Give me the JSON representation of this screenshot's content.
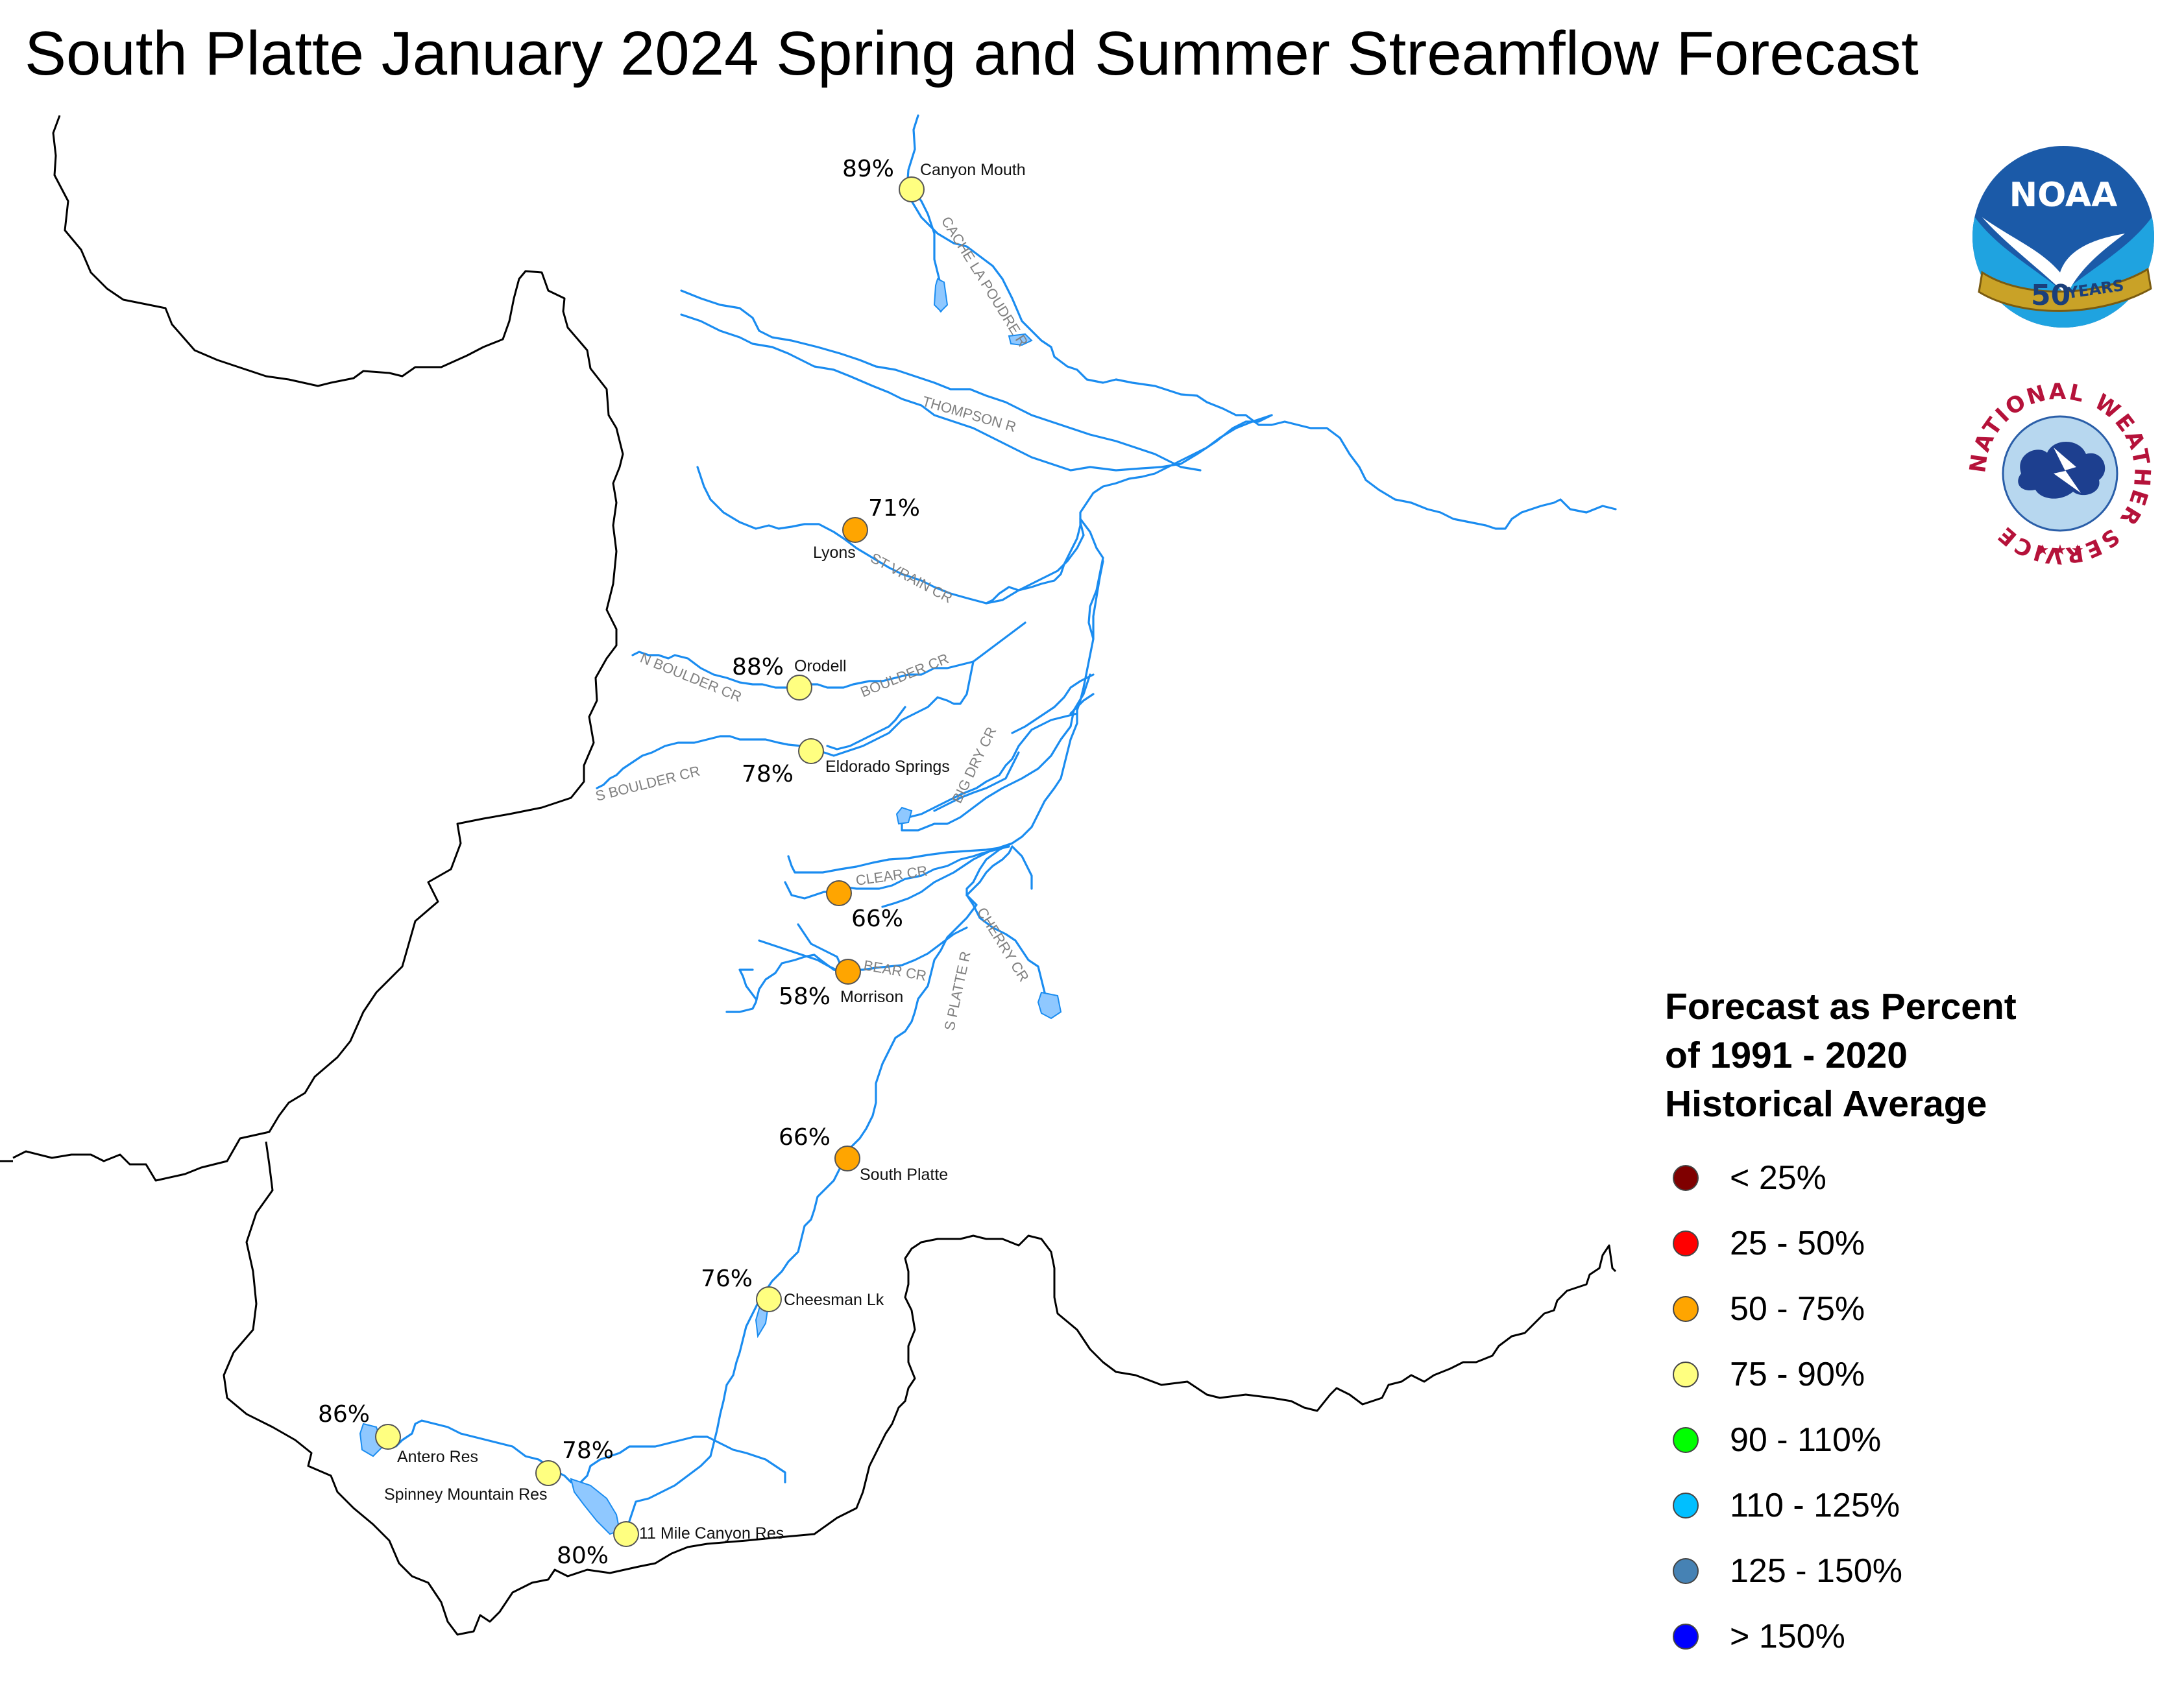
{
  "title": "South Platte January 2024 Spring and Summer Streamflow Forecast",
  "rivers": {
    "cache_la_poudre": "CACHE LA POUDRE R",
    "thompson": "THOMPSON R",
    "st_vrain": "ST VRAIN CR",
    "n_boulder": "N BOULDER CR",
    "boulder": "BOULDER CR",
    "s_boulder": "S BOULDER CR",
    "big_dry": "BIG DRY CR",
    "clear": "CLEAR CR",
    "bear": "BEAR CR",
    "cherry": "CHERRY CR",
    "s_platte": "S PLATTE R"
  },
  "sites": [
    {
      "name": "Canyon Mouth",
      "percent": "89%",
      "category": "75 - 90%"
    },
    {
      "name": "Lyons",
      "percent": "71%",
      "category": "50 - 75%"
    },
    {
      "name": "Orodell",
      "percent": "88%",
      "category": "75 - 90%"
    },
    {
      "name": "Eldorado Springs",
      "percent": "78%",
      "category": "75 - 90%"
    },
    {
      "name": "",
      "percent": "66%",
      "category": "50 - 75%"
    },
    {
      "name": "Morrison",
      "percent": "58%",
      "category": "50 - 75%"
    },
    {
      "name": "South Platte",
      "percent": "66%",
      "category": "50 - 75%"
    },
    {
      "name": "Cheesman Lk",
      "percent": "76%",
      "category": "75 - 90%"
    },
    {
      "name": "Antero Res",
      "percent": "86%",
      "category": "75 - 90%"
    },
    {
      "name": "Spinney Mountain Res",
      "percent": "78%",
      "category": "75 - 90%"
    },
    {
      "name": "11 Mile Canyon Res",
      "percent": "80%",
      "category": "75 - 90%"
    }
  ],
  "legend": {
    "title_lines": [
      "Forecast as Percent",
      "of 1991 - 2020",
      "Historical Average"
    ],
    "items": [
      {
        "label": "< 25%",
        "color": "#7f0000"
      },
      {
        "label": "25 - 50%",
        "color": "#ff0000"
      },
      {
        "label": "50 - 75%",
        "color": "#ffa500"
      },
      {
        "label": "75 - 90%",
        "color": "#ffff80"
      },
      {
        "label": "90 - 110%",
        "color": "#00ff00"
      },
      {
        "label": "110 - 125%",
        "color": "#00bfff"
      },
      {
        "label": "125 - 150%",
        "color": "#4682b4"
      },
      {
        "label": "> 150%",
        "color": "#0000ff"
      }
    ]
  },
  "logos": {
    "noaa": {
      "word": "NOAA",
      "number": "50",
      "band": "YEARS"
    },
    "nws": {
      "ring_text": "NATIONAL WEATHER SERVICE"
    }
  },
  "colors": {
    "river": "#1a8cf0",
    "lake": "#8fc8ff",
    "basin": "#000000"
  }
}
